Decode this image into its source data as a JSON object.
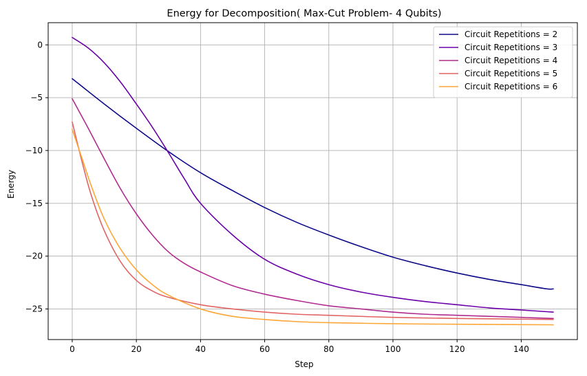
{
  "chart_data": {
    "type": "line",
    "title": "Energy for Decomposition( Max-Cut Problem- 4 Qubits)",
    "xlabel": "Step",
    "ylabel": "Energy",
    "xlim": [
      -7.5,
      157.5
    ],
    "ylim": [
      -27.9,
      2.1
    ],
    "xticks": [
      0,
      20,
      40,
      60,
      80,
      100,
      120,
      140
    ],
    "yticks": [
      0,
      -5,
      -10,
      -15,
      -20,
      -25
    ],
    "ytick_labels": [
      "0",
      "−5",
      "−10",
      "−15",
      "−20",
      "−25"
    ],
    "grid": true,
    "legend_position": "top-right",
    "series": [
      {
        "name": "Circuit Repetitions = 2",
        "color": "#0d0887",
        "x": [
          0,
          10,
          20,
          30,
          40,
          50,
          60,
          70,
          80,
          90,
          100,
          110,
          120,
          130,
          140,
          148,
          150
        ],
        "y": [
          -3.2,
          -5.6,
          -7.9,
          -10.1,
          -12.1,
          -13.8,
          -15.4,
          -16.8,
          -18.0,
          -19.1,
          -20.1,
          -20.9,
          -21.6,
          -22.2,
          -22.7,
          -23.1,
          -23.1
        ]
      },
      {
        "name": "Circuit Repetitions = 3",
        "color": "#6a00a8",
        "x": [
          0,
          5,
          10,
          15,
          20,
          25,
          30,
          35,
          40,
          50,
          60,
          70,
          80,
          90,
          100,
          110,
          120,
          130,
          140,
          150
        ],
        "y": [
          0.7,
          -0.3,
          -1.7,
          -3.5,
          -5.6,
          -7.8,
          -10.2,
          -12.7,
          -15.0,
          -18.0,
          -20.3,
          -21.7,
          -22.7,
          -23.4,
          -23.9,
          -24.3,
          -24.6,
          -24.9,
          -25.1,
          -25.3
        ]
      },
      {
        "name": "Circuit Repetitions = 4",
        "color": "#b12a90",
        "x": [
          0,
          5,
          10,
          15,
          20,
          25,
          30,
          35,
          40,
          50,
          60,
          70,
          80,
          90,
          100,
          110,
          120,
          130,
          140,
          150
        ],
        "y": [
          -5.1,
          -7.9,
          -10.8,
          -13.6,
          -16.0,
          -18.0,
          -19.6,
          -20.7,
          -21.5,
          -22.8,
          -23.6,
          -24.2,
          -24.7,
          -25.0,
          -25.3,
          -25.5,
          -25.6,
          -25.7,
          -25.8,
          -25.9
        ]
      },
      {
        "name": "Circuit Repetitions = 5",
        "color": "#e16462",
        "x": [
          0,
          3,
          6,
          10,
          15,
          20,
          25,
          30,
          40,
          50,
          60,
          70,
          80,
          100,
          120,
          150
        ],
        "y": [
          -7.3,
          -11.0,
          -14.3,
          -17.6,
          -20.5,
          -22.3,
          -23.3,
          -23.9,
          -24.6,
          -25.0,
          -25.3,
          -25.5,
          -25.6,
          -25.8,
          -25.9,
          -26.0
        ]
      },
      {
        "name": "Circuit Repetitions = 6",
        "color": "#fca636",
        "x": [
          0,
          3,
          6,
          10,
          15,
          20,
          25,
          30,
          40,
          50,
          60,
          70,
          80,
          100,
          120,
          150
        ],
        "y": [
          -8.0,
          -10.7,
          -13.4,
          -16.5,
          -19.3,
          -21.3,
          -22.7,
          -23.7,
          -25.0,
          -25.7,
          -26.0,
          -26.2,
          -26.3,
          -26.4,
          -26.45,
          -26.5
        ]
      }
    ]
  }
}
